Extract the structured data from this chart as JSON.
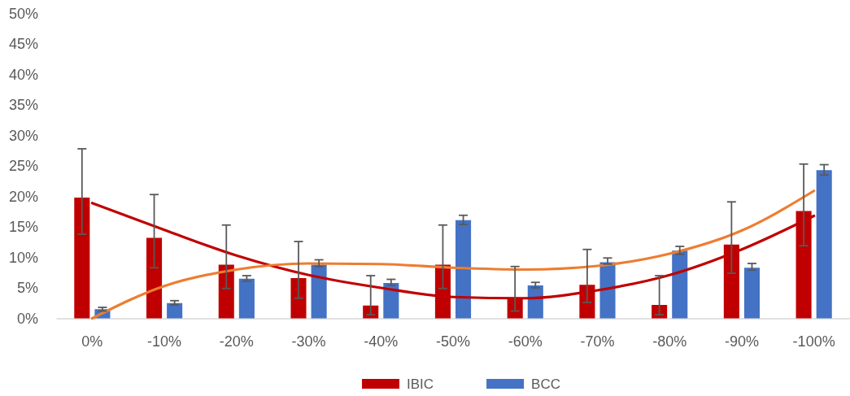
{
  "chart_data": {
    "type": "bar",
    "categories": [
      "0%",
      "-10%",
      "-20%",
      "-30%",
      "-40%",
      "-50%",
      "-60%",
      "-70%",
      "-80%",
      "-90%",
      "-100%"
    ],
    "series": [
      {
        "name": "IBIC",
        "color": "#c00000",
        "values": [
          19.8,
          13.2,
          8.8,
          6.6,
          2.1,
          8.8,
          3.2,
          5.5,
          2.2,
          12.1,
          17.6
        ],
        "errors": [
          [
            13.8,
            27.8
          ],
          [
            8.3,
            20.3
          ],
          [
            4.9,
            15.3
          ],
          [
            3.3,
            12.6
          ],
          [
            0.6,
            7.0
          ],
          [
            4.9,
            15.3
          ],
          [
            1.2,
            8.5
          ],
          [
            2.6,
            11.3
          ],
          [
            0.6,
            7.0
          ],
          [
            7.4,
            19.1
          ],
          [
            11.9,
            25.3
          ]
        ]
      },
      {
        "name": "BCC",
        "color": "#4472c4",
        "values": [
          1.5,
          2.5,
          6.5,
          8.8,
          5.8,
          16.1,
          5.4,
          9.2,
          11.1,
          8.3,
          24.3
        ],
        "errors": [
          [
            1.2,
            1.8
          ],
          [
            2.2,
            2.9
          ],
          [
            6.1,
            7.0
          ],
          [
            8.5,
            9.6
          ],
          [
            5.4,
            6.4
          ],
          [
            15.4,
            16.9
          ],
          [
            5.0,
            5.9
          ],
          [
            8.9,
            9.9
          ],
          [
            10.5,
            11.8
          ],
          [
            7.9,
            9.0
          ],
          [
            23.5,
            25.2
          ]
        ]
      },
      {
        "type": "line",
        "color": "#c00000",
        "values": [
          18.9,
          14.5,
          10.3,
          7.1,
          5.0,
          3.5,
          3.3,
          4.6,
          7.1,
          11.3,
          16.8
        ]
      },
      {
        "type": "line",
        "color": "#ed7d31",
        "values": [
          0,
          5.3,
          8.0,
          9.0,
          8.9,
          8.3,
          8.0,
          8.6,
          10.6,
          14.4,
          20.9
        ]
      }
    ],
    "ylim": [
      0,
      50
    ],
    "yticks": [
      {
        "value": 0,
        "label": "0%"
      },
      {
        "value": 5,
        "label": "5%"
      },
      {
        "value": 10,
        "label": "10%"
      },
      {
        "value": 15,
        "label": "15%"
      },
      {
        "value": 20,
        "label": "20%"
      },
      {
        "value": 25,
        "label": "25%"
      },
      {
        "value": 30,
        "label": "30%"
      },
      {
        "value": 35,
        "label": "35%"
      },
      {
        "value": 40,
        "label": "40%"
      },
      {
        "value": 45,
        "label": "45%"
      },
      {
        "value": 50,
        "label": "50%"
      }
    ],
    "legend": "bottom"
  }
}
